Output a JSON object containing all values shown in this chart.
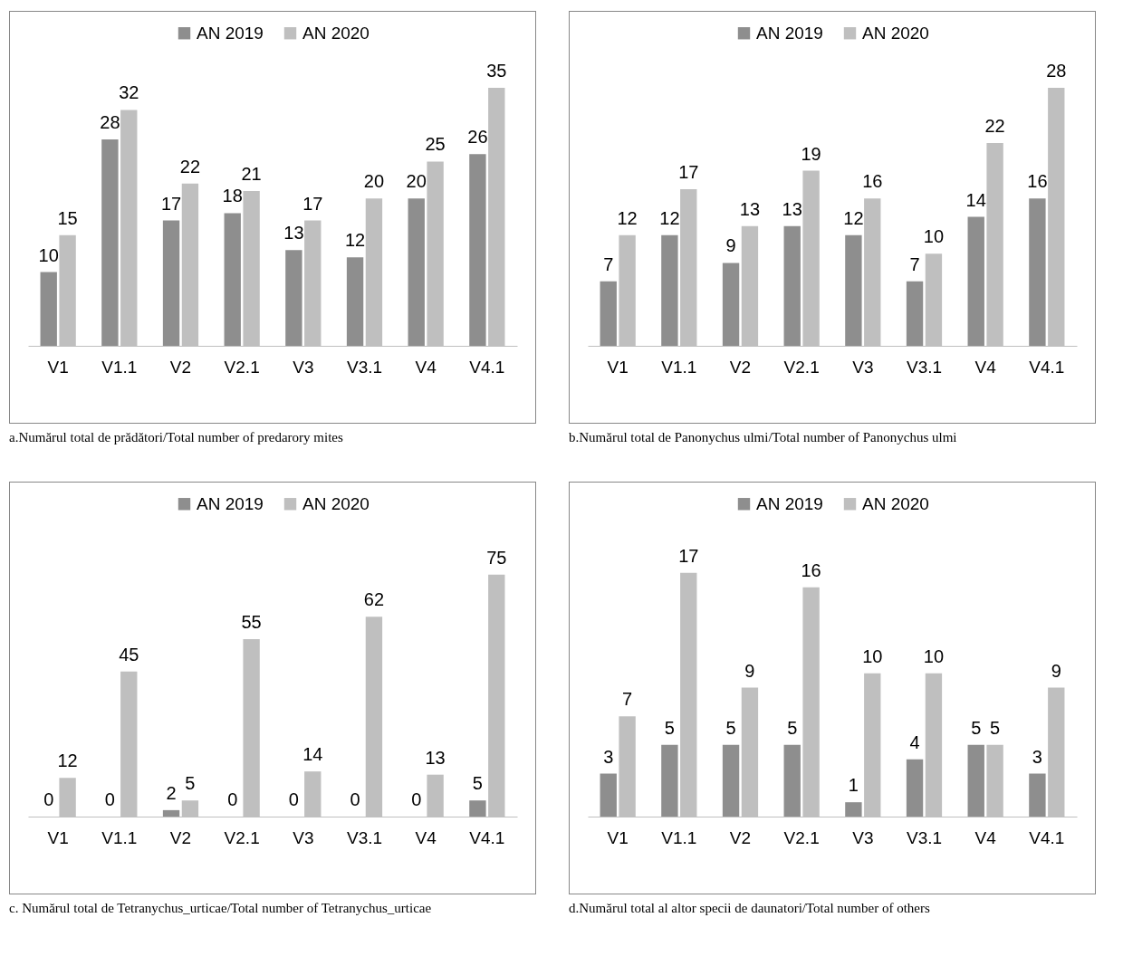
{
  "chart_data": [
    {
      "type": "bar",
      "categories": [
        "V1",
        "V1.1",
        "V2",
        "V2.1",
        "V3",
        "V3.1",
        "V4",
        "V4.1"
      ],
      "series": [
        {
          "name": "AN 2019",
          "color": "#8e8e8e",
          "values": [
            10,
            28,
            17,
            18,
            13,
            12,
            20,
            26
          ]
        },
        {
          "name": "AN 2020",
          "color": "#bfbfbf",
          "values": [
            15,
            32,
            22,
            21,
            17,
            20,
            25,
            35
          ]
        }
      ],
      "data_labels": true,
      "legend": "top",
      "annotations": [
        "a.Numărul total de prădători/Total number of predarory mites"
      ]
    },
    {
      "type": "bar",
      "categories": [
        "V1",
        "V1.1",
        "V2",
        "V2.1",
        "V3",
        "V3.1",
        "V4",
        "V4.1"
      ],
      "series": [
        {
          "name": "AN 2019",
          "color": "#8e8e8e",
          "values": [
            7,
            12,
            9,
            13,
            12,
            7,
            14,
            16
          ]
        },
        {
          "name": "AN 2020",
          "color": "#bfbfbf",
          "values": [
            12,
            17,
            13,
            19,
            16,
            10,
            22,
            28
          ]
        }
      ],
      "data_labels": true,
      "legend": "top",
      "annotations": [
        "b.Numărul total de Panonychus ulmi/Total number of Panonychus ulmi"
      ]
    },
    {
      "type": "bar",
      "categories": [
        "V1",
        "V1.1",
        "V2",
        "V2.1",
        "V3",
        "V3.1",
        "V4",
        "V4.1"
      ],
      "series": [
        {
          "name": "AN 2019",
          "color": "#8e8e8e",
          "values": [
            0,
            0,
            2,
            0,
            0,
            0,
            0,
            5
          ]
        },
        {
          "name": "AN 2020",
          "color": "#bfbfbf",
          "values": [
            12,
            45,
            5,
            55,
            14,
            62,
            13,
            75
          ]
        }
      ],
      "data_labels": true,
      "legend": "top",
      "annotations": [
        "c. Numărul total de Tetranychus_urticae/Total number of Tetranychus_urticae"
      ]
    },
    {
      "type": "bar",
      "categories": [
        "V1",
        "V1.1",
        "V2",
        "V2.1",
        "V3",
        "V3.1",
        "V4",
        "V4.1"
      ],
      "series": [
        {
          "name": "AN 2019",
          "color": "#8e8e8e",
          "values": [
            3,
            5,
            5,
            5,
            1,
            4,
            5,
            3
          ]
        },
        {
          "name": "AN 2020",
          "color": "#bfbfbf",
          "values": [
            7,
            17,
            9,
            16,
            10,
            10,
            5,
            9
          ]
        }
      ],
      "data_labels": true,
      "legend": "top",
      "annotations": [
        "d.Numărul total al altor specii de daunatori/Total number of others"
      ]
    }
  ]
}
